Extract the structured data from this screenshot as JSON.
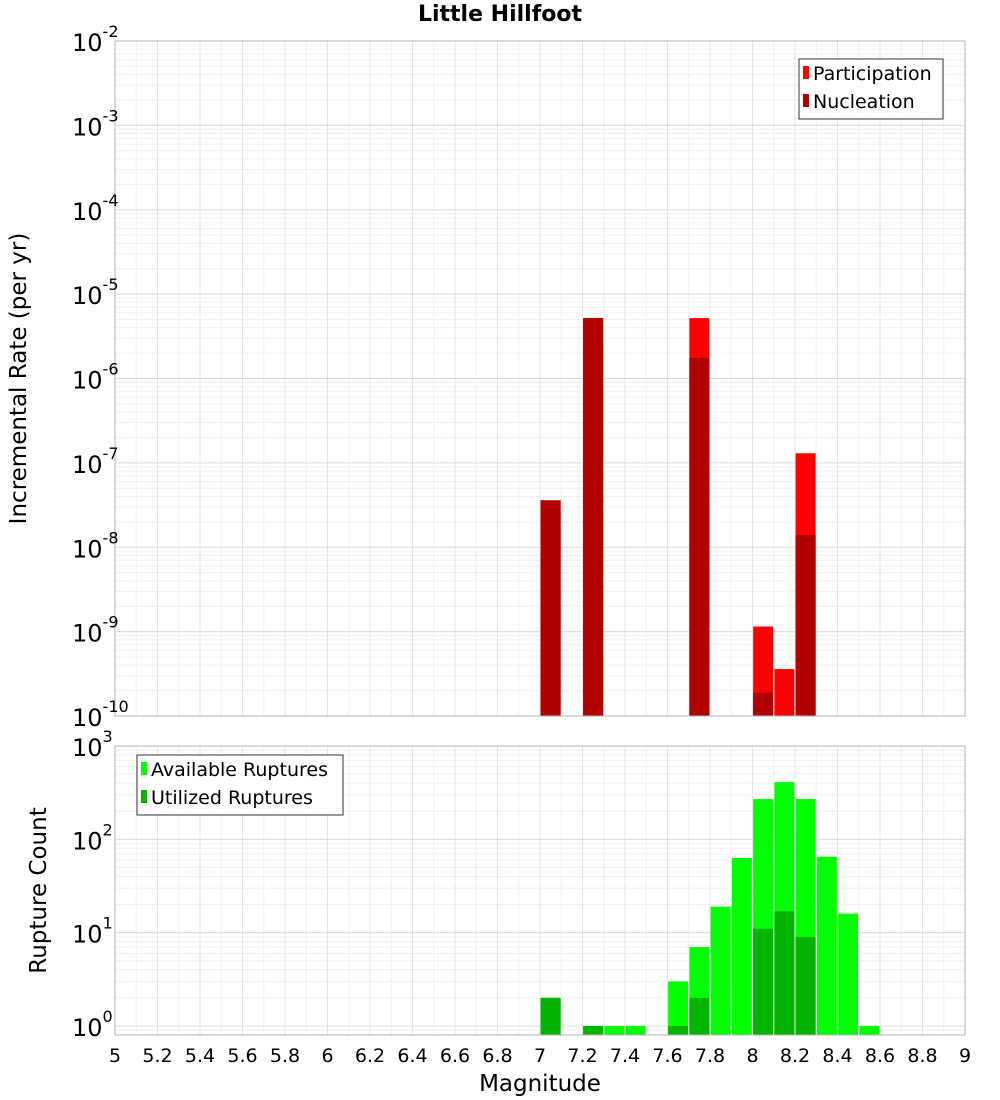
{
  "chart_data": [
    {
      "type": "bar",
      "title": "Little Hillfoot",
      "xlabel": "",
      "ylabel": "Incremental Rate (per yr)",
      "yscale": "log",
      "ylim": [
        1e-10,
        0.01
      ],
      "xlim": [
        5,
        9
      ],
      "grid": true,
      "legend_placement": "top-right",
      "series": [
        {
          "name": "Participation",
          "color": "#ff0000",
          "x": [
            7.05,
            7.25,
            7.75,
            8.05,
            8.15,
            8.25
          ],
          "values": [
            3.6e-08,
            5.2e-06,
            5.2e-06,
            1.15e-09,
            3.6e-10,
            1.3e-07
          ]
        },
        {
          "name": "Nucleation",
          "color": "#b00000",
          "x": [
            7.05,
            7.25,
            7.75,
            8.05,
            8.25
          ],
          "values": [
            3.6e-08,
            5.2e-06,
            1.75e-06,
            1.9e-10,
            1.4e-08
          ]
        }
      ],
      "y_ticks": [
        {
          "base": "10",
          "exp": "-2"
        },
        {
          "base": "10",
          "exp": "-3"
        },
        {
          "base": "10",
          "exp": "-4"
        },
        {
          "base": "10",
          "exp": "-5"
        },
        {
          "base": "10",
          "exp": "-6"
        },
        {
          "base": "10",
          "exp": "-7"
        },
        {
          "base": "10",
          "exp": "-8"
        },
        {
          "base": "10",
          "exp": "-9"
        },
        {
          "base": "10",
          "exp": "-10"
        }
      ]
    },
    {
      "type": "bar",
      "title": "",
      "xlabel": "Magnitude",
      "ylabel": "Rupture Count",
      "yscale": "log",
      "ylim": [
        0.8,
        1000
      ],
      "xlim": [
        5,
        9
      ],
      "grid": true,
      "legend_placement": "top-left",
      "series": [
        {
          "name": "Available Ruptures",
          "color": "#00ff00",
          "x": [
            7.05,
            7.25,
            7.35,
            7.45,
            7.65,
            7.75,
            7.85,
            7.95,
            8.05,
            8.15,
            8.25,
            8.35,
            8.45,
            8.55
          ],
          "values": [
            2,
            1,
            1,
            1,
            3,
            7,
            19,
            63,
            270,
            410,
            270,
            65,
            16,
            1
          ]
        },
        {
          "name": "Utilized Ruptures",
          "color": "#00b400",
          "x": [
            7.05,
            7.25,
            7.65,
            7.75,
            8.05,
            8.15,
            8.25
          ],
          "values": [
            2,
            1,
            1,
            2,
            11,
            17,
            9
          ]
        }
      ],
      "x_ticks": [
        "5",
        "5.2",
        "5.4",
        "5.6",
        "5.8",
        "6",
        "6.2",
        "6.4",
        "6.6",
        "6.8",
        "7",
        "7.2",
        "7.4",
        "7.6",
        "7.8",
        "8",
        "8.2",
        "8.4",
        "8.6",
        "8.8",
        "9"
      ],
      "y_ticks": [
        {
          "base": "10",
          "exp": "3"
        },
        {
          "base": "10",
          "exp": "2"
        },
        {
          "base": "10",
          "exp": "1"
        },
        {
          "base": "10",
          "exp": "0"
        }
      ]
    }
  ]
}
